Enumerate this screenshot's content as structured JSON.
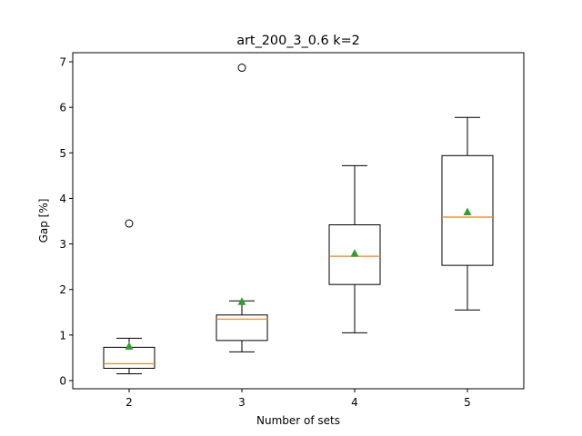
{
  "chart_data": {
    "type": "box",
    "title": "art_200_3_0.6   k=2",
    "xlabel": "Number of sets",
    "ylabel": "Gap [%]",
    "ylim": [
      -0.18,
      7.2
    ],
    "yticks": [
      0,
      1,
      2,
      3,
      4,
      5,
      6,
      7
    ],
    "categories": [
      "2",
      "3",
      "4",
      "5"
    ],
    "boxes": [
      {
        "category": "2",
        "whisker_low": 0.15,
        "q1": 0.27,
        "median": 0.37,
        "q3": 0.73,
        "whisker_high": 0.93,
        "mean": 0.75,
        "outliers": [
          3.45
        ]
      },
      {
        "category": "3",
        "whisker_low": 0.63,
        "q1": 0.88,
        "median": 1.35,
        "q3": 1.44,
        "whisker_high": 1.75,
        "mean": 1.73,
        "outliers": [
          6.87
        ]
      },
      {
        "category": "4",
        "whisker_low": 1.05,
        "q1": 2.11,
        "median": 2.73,
        "q3": 3.42,
        "whisker_high": 4.72,
        "mean": 2.79,
        "outliers": []
      },
      {
        "category": "5",
        "whisker_low": 1.55,
        "q1": 2.53,
        "median": 3.59,
        "q3": 4.94,
        "whisker_high": 5.78,
        "mean": 3.7,
        "outliers": []
      }
    ],
    "grid": false,
    "colors": {
      "box": "#000000",
      "median": "#ff7f0e",
      "mean": "#2ca02c",
      "outlier": "#000000"
    }
  }
}
